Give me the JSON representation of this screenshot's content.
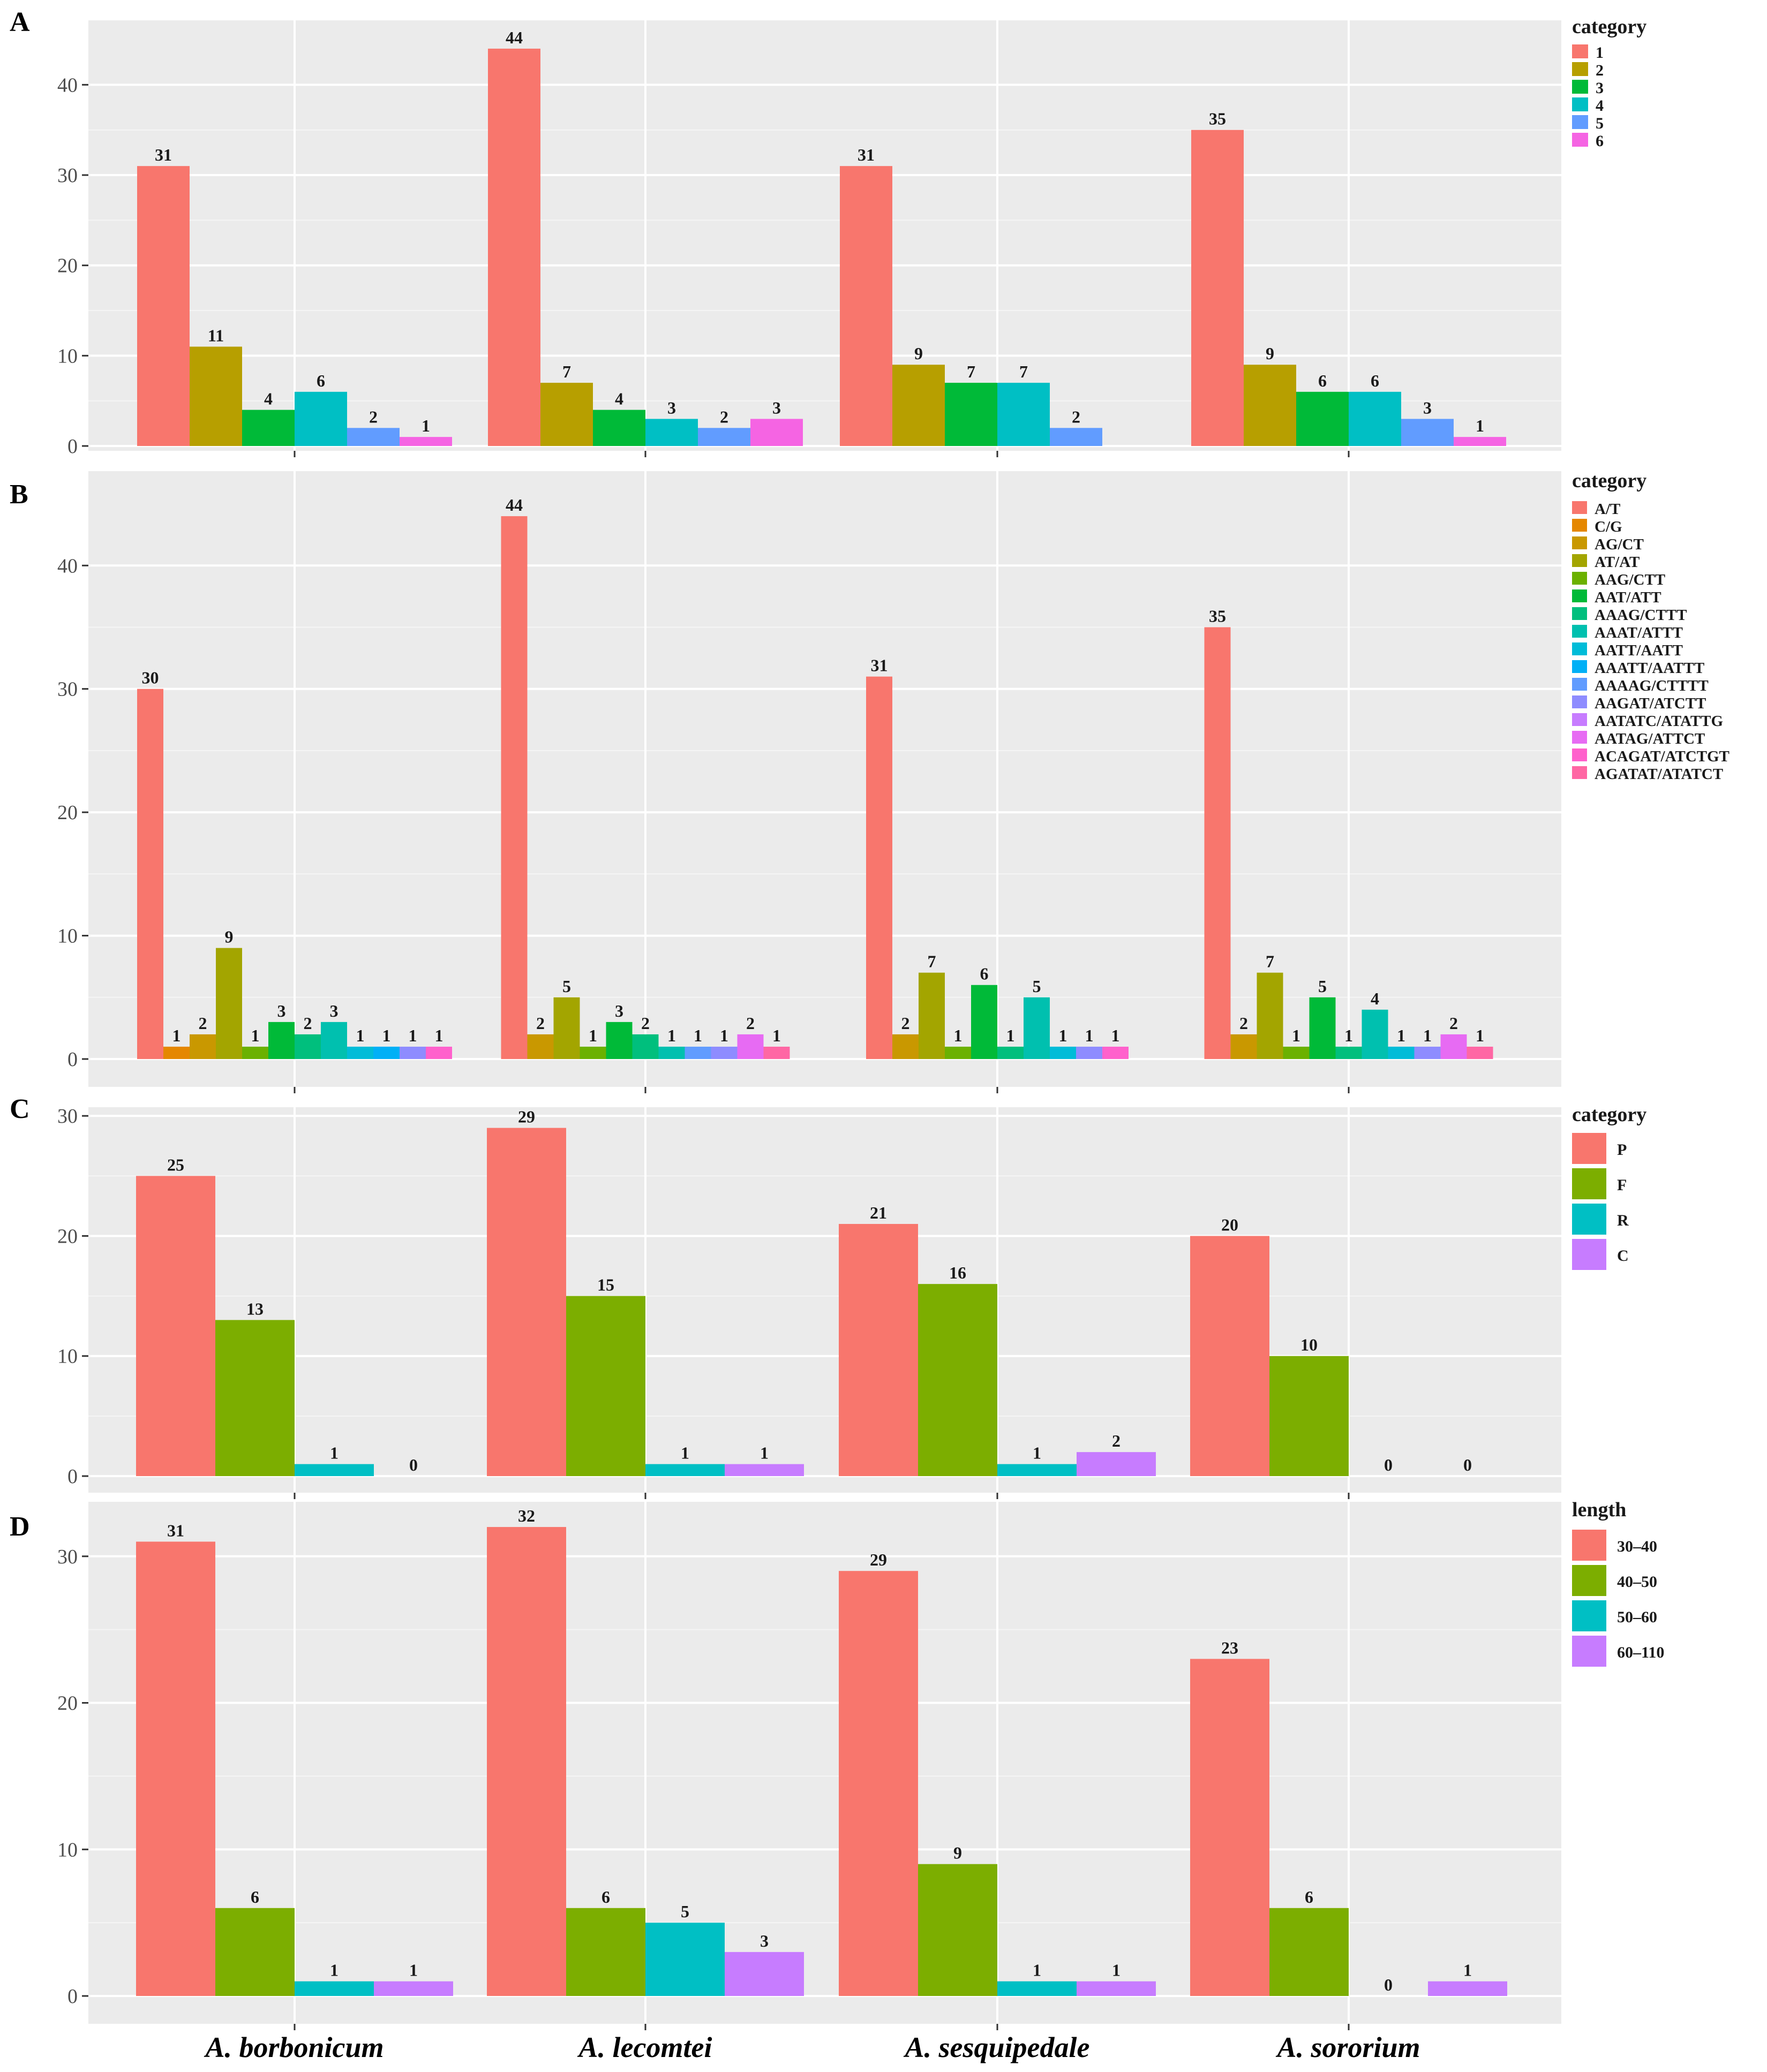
{
  "x_categories": [
    "A. borbonicum",
    "A. lecomtei",
    "A. sesquipedale",
    "A. sororium"
  ],
  "chart_data": [
    {
      "panel": "A",
      "type": "bar",
      "legend_title": "category",
      "categories": [
        "A. borbonicum",
        "A. lecomtei",
        "A. sesquipedale",
        "A. sororium"
      ],
      "ylim": [
        0,
        45
      ],
      "yticks": [
        0,
        10,
        20,
        30,
        40
      ],
      "grid": true,
      "legend_position": "right",
      "series": [
        {
          "name": "1",
          "color": "#F8766D",
          "values": [
            31,
            44,
            31,
            35
          ]
        },
        {
          "name": "2",
          "color": "#B79F00",
          "values": [
            11,
            7,
            9,
            9
          ]
        },
        {
          "name": "3",
          "color": "#00BA38",
          "values": [
            4,
            4,
            7,
            6
          ]
        },
        {
          "name": "4",
          "color": "#00BFC4",
          "values": [
            6,
            3,
            7,
            6
          ]
        },
        {
          "name": "5",
          "color": "#619CFF",
          "values": [
            2,
            2,
            2,
            3
          ]
        },
        {
          "name": "6",
          "color": "#F564E3",
          "values": [
            1,
            3,
            0,
            1
          ]
        }
      ],
      "bars_per_group": [
        6,
        6,
        5,
        6
      ],
      "omit": [
        [
          2,
          5
        ]
      ]
    },
    {
      "panel": "B",
      "type": "bar",
      "legend_title": "category",
      "categories": [
        "A. borbonicum",
        "A. lecomtei",
        "A. sesquipedale",
        "A. sororium"
      ],
      "ylim": [
        0,
        46
      ],
      "yticks": [
        0,
        10,
        20,
        30,
        40
      ],
      "grid": true,
      "legend_position": "right",
      "series": [
        {
          "name": "A/T",
          "color": "#F8766D"
        },
        {
          "name": "C/G",
          "color": "#E58700"
        },
        {
          "name": "AG/CT",
          "color": "#C99800"
        },
        {
          "name": "AT/AT",
          "color": "#A3A500"
        },
        {
          "name": "AAG/CTT",
          "color": "#6BB100"
        },
        {
          "name": "AAT/ATT",
          "color": "#00BA38"
        },
        {
          "name": "AAAG/CTTT",
          "color": "#00BF7D"
        },
        {
          "name": "AAAT/ATTT",
          "color": "#00C0AF"
        },
        {
          "name": "AATT/AATT",
          "color": "#00BCD8"
        },
        {
          "name": "AAATT/AATTT",
          "color": "#00B0F6"
        },
        {
          "name": "AAAAG/CTTTT",
          "color": "#619CFF"
        },
        {
          "name": "AAGAT/ATCTT",
          "color": "#8E8CFF"
        },
        {
          "name": "AATATC/ATATTG",
          "color": "#C77CFF"
        },
        {
          "name": "AATAG/ATTCT",
          "color": "#E76BF3"
        },
        {
          "name": "ACAGAT/ATCTGT",
          "color": "#FF61CC"
        },
        {
          "name": "AGATAT/ATATCT",
          "color": "#FF67A4"
        }
      ],
      "groups": [
        {
          "series": [
            0,
            1,
            2,
            3,
            4,
            5,
            6,
            7,
            8,
            9,
            11,
            14
          ],
          "values": [
            30,
            1,
            2,
            9,
            1,
            3,
            2,
            3,
            1,
            1,
            1,
            1
          ]
        },
        {
          "series": [
            0,
            2,
            3,
            4,
            5,
            6,
            7,
            10,
            11,
            13,
            15
          ],
          "values": [
            44,
            2,
            5,
            1,
            3,
            2,
            1,
            1,
            1,
            2,
            1
          ]
        },
        {
          "series": [
            0,
            2,
            3,
            4,
            5,
            6,
            7,
            8,
            11,
            14
          ],
          "values": [
            31,
            2,
            7,
            1,
            6,
            1,
            5,
            1,
            1,
            1
          ]
        },
        {
          "series": [
            0,
            2,
            3,
            4,
            5,
            6,
            7,
            8,
            11,
            13,
            15
          ],
          "values": [
            35,
            2,
            7,
            1,
            5,
            1,
            4,
            1,
            1,
            2,
            1
          ]
        }
      ]
    },
    {
      "panel": "C",
      "type": "bar",
      "legend_title": "category",
      "categories": [
        "A. borbonicum",
        "A. lecomtei",
        "A. sesquipedale",
        "A. sororium"
      ],
      "ylim": [
        0,
        30.5
      ],
      "yticks": [
        0,
        10,
        20,
        30
      ],
      "grid": true,
      "legend_position": "right",
      "series": [
        {
          "name": "P",
          "color": "#F8766D",
          "values": [
            25,
            29,
            21,
            20
          ]
        },
        {
          "name": "F",
          "color": "#7CAE00",
          "values": [
            13,
            15,
            16,
            10
          ]
        },
        {
          "name": "R",
          "color": "#00BFC4",
          "values": [
            1,
            1,
            1,
            0
          ]
        },
        {
          "name": "C",
          "color": "#C77CFF",
          "values": [
            0,
            1,
            2,
            0
          ]
        }
      ]
    },
    {
      "panel": "D",
      "type": "bar",
      "legend_title": "length",
      "categories": [
        "A. borbonicum",
        "A. lecomtei",
        "A. sesquipedale",
        "A. sororium"
      ],
      "ylim": [
        0,
        33.5
      ],
      "yticks": [
        0,
        10,
        20,
        30
      ],
      "grid": true,
      "legend_position": "right",
      "series": [
        {
          "name": "30–40",
          "color": "#F8766D",
          "values": [
            31,
            32,
            29,
            23
          ]
        },
        {
          "name": "40–50",
          "color": "#7CAE00",
          "values": [
            6,
            6,
            9,
            6
          ]
        },
        {
          "name": "50–60",
          "color": "#00BFC4",
          "values": [
            1,
            5,
            1,
            0
          ]
        },
        {
          "name": "60–110",
          "color": "#C77CFF",
          "values": [
            1,
            3,
            1,
            1
          ]
        }
      ]
    }
  ]
}
